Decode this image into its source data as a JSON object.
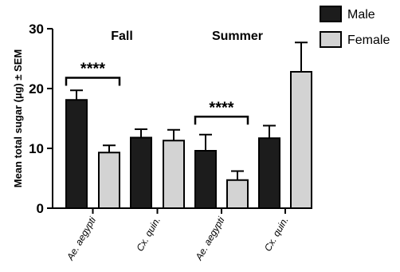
{
  "chart_data": {
    "type": "bar",
    "ylabel": "Mean total sugar (µg) ± SEM",
    "ylim": [
      0,
      30
    ],
    "yticks": [
      "0",
      "10",
      "20",
      "30"
    ],
    "categories": [
      "Ae. aegypti",
      "Cx. quin.",
      "Ae. aegypti",
      "Cx. quin."
    ],
    "groups": [
      {
        "label": "Fall",
        "categories": [
          0,
          1
        ]
      },
      {
        "label": "Summer",
        "categories": [
          2,
          3
        ]
      }
    ],
    "series": [
      {
        "name": "Male",
        "color": "#1c1c1c",
        "values": [
          18.1,
          11.8,
          9.6,
          11.7
        ],
        "sem": [
          1.6,
          1.4,
          2.7,
          2.1
        ]
      },
      {
        "name": "Female",
        "color": "#d3d3d3",
        "values": [
          9.3,
          11.3,
          4.7,
          22.8
        ],
        "sem": [
          1.2,
          1.8,
          1.5,
          4.9
        ]
      }
    ],
    "significance": [
      {
        "label": "****",
        "category": 0,
        "y": 21.8
      },
      {
        "label": "****",
        "category": 2,
        "y": 15.3
      }
    ],
    "legend": "top-right",
    "grid": false
  }
}
